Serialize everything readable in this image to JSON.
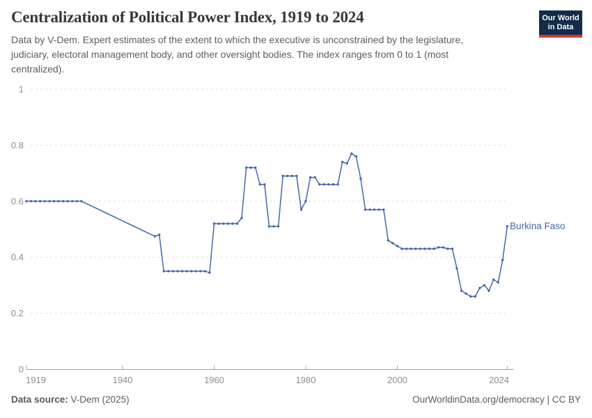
{
  "header": {
    "title": "Centralization of Political Power Index, 1919 to 2024",
    "subtitle": "Data by V-Dem. Expert estimates of the extent to which the executive is unconstrained by the legislature, judiciary, electoral management body, and other oversight bodies. The index ranges from 0 to 1 (most centralized)."
  },
  "logo": {
    "line1": "Our World",
    "line2": "in Data"
  },
  "chart_data": {
    "type": "line",
    "title": "Centralization of Political Power Index, 1919 to 2024",
    "xlabel": "",
    "ylabel": "",
    "xlim": [
      1919,
      2024
    ],
    "ylim": [
      0,
      1
    ],
    "x_ticks": [
      1919,
      1940,
      1960,
      1980,
      2000,
      2024
    ],
    "y_ticks": [
      0,
      0.2,
      0.4,
      0.6,
      0.8,
      1
    ],
    "grid": "horizontal-dashed",
    "legend_position": "end-of-line-label",
    "gap_note": "no data points 1932-1946; straight interpolated segment between 1931 and 1947",
    "series": [
      {
        "name": "Burkina Faso",
        "color": "#4766a4",
        "points": [
          [
            1919,
            0.6
          ],
          [
            1920,
            0.6
          ],
          [
            1921,
            0.6
          ],
          [
            1922,
            0.6
          ],
          [
            1923,
            0.6
          ],
          [
            1924,
            0.6
          ],
          [
            1925,
            0.6
          ],
          [
            1926,
            0.6
          ],
          [
            1927,
            0.6
          ],
          [
            1928,
            0.6
          ],
          [
            1929,
            0.6
          ],
          [
            1930,
            0.6
          ],
          [
            1931,
            0.6
          ],
          [
            1947,
            0.475
          ],
          [
            1948,
            0.48
          ],
          [
            1949,
            0.35
          ],
          [
            1950,
            0.35
          ],
          [
            1951,
            0.35
          ],
          [
            1952,
            0.35
          ],
          [
            1953,
            0.35
          ],
          [
            1954,
            0.35
          ],
          [
            1955,
            0.35
          ],
          [
            1956,
            0.35
          ],
          [
            1957,
            0.35
          ],
          [
            1958,
            0.35
          ],
          [
            1959,
            0.345
          ],
          [
            1960,
            0.52
          ],
          [
            1961,
            0.52
          ],
          [
            1962,
            0.52
          ],
          [
            1963,
            0.52
          ],
          [
            1964,
            0.52
          ],
          [
            1965,
            0.52
          ],
          [
            1966,
            0.54
          ],
          [
            1967,
            0.72
          ],
          [
            1968,
            0.72
          ],
          [
            1969,
            0.72
          ],
          [
            1970,
            0.66
          ],
          [
            1971,
            0.66
          ],
          [
            1972,
            0.51
          ],
          [
            1973,
            0.51
          ],
          [
            1974,
            0.51
          ],
          [
            1975,
            0.69
          ],
          [
            1976,
            0.69
          ],
          [
            1977,
            0.69
          ],
          [
            1978,
            0.69
          ],
          [
            1979,
            0.57
          ],
          [
            1980,
            0.6
          ],
          [
            1981,
            0.685
          ],
          [
            1982,
            0.685
          ],
          [
            1983,
            0.66
          ],
          [
            1984,
            0.66
          ],
          [
            1985,
            0.66
          ],
          [
            1986,
            0.66
          ],
          [
            1987,
            0.66
          ],
          [
            1988,
            0.74
          ],
          [
            1989,
            0.735
          ],
          [
            1990,
            0.77
          ],
          [
            1991,
            0.76
          ],
          [
            1992,
            0.68
          ],
          [
            1993,
            0.57
          ],
          [
            1994,
            0.57
          ],
          [
            1995,
            0.57
          ],
          [
            1996,
            0.57
          ],
          [
            1997,
            0.57
          ],
          [
            1998,
            0.46
          ],
          [
            1999,
            0.45
          ],
          [
            2000,
            0.44
          ],
          [
            2001,
            0.43
          ],
          [
            2002,
            0.43
          ],
          [
            2003,
            0.43
          ],
          [
            2004,
            0.43
          ],
          [
            2005,
            0.43
          ],
          [
            2006,
            0.43
          ],
          [
            2007,
            0.43
          ],
          [
            2008,
            0.43
          ],
          [
            2009,
            0.435
          ],
          [
            2010,
            0.435
          ],
          [
            2011,
            0.43
          ],
          [
            2012,
            0.43
          ],
          [
            2013,
            0.36
          ],
          [
            2014,
            0.28
          ],
          [
            2015,
            0.27
          ],
          [
            2016,
            0.26
          ],
          [
            2017,
            0.26
          ],
          [
            2018,
            0.29
          ],
          [
            2019,
            0.3
          ],
          [
            2020,
            0.28
          ],
          [
            2021,
            0.32
          ],
          [
            2022,
            0.31
          ],
          [
            2023,
            0.39
          ],
          [
            2024,
            0.51
          ]
        ]
      }
    ]
  },
  "footer": {
    "source_label": "Data source:",
    "source_value": "V-Dem (2025)",
    "credit": "OurWorldinData.org/democracy | CC BY"
  },
  "colors": {
    "line": "#4766a4",
    "gridline": "#dedede",
    "axis": "#a3a3a3",
    "tick_label": "#8d8d8d",
    "title": "#383838",
    "subtitle": "#5c5c5c",
    "footer": "#5b5b5b",
    "logo_bg": "#132c4a",
    "logo_accent": "#dd352c"
  }
}
